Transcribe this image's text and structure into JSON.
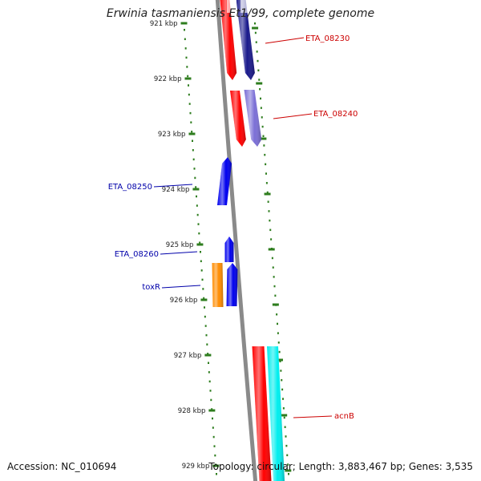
{
  "title": "Erwinia tasmaniensis Et1/99, complete genome",
  "accession_text": "Accession: NC_010694",
  "summary_text": "Topology: circular; Length: 3,883,467 bp; Genes: 3,535",
  "colors": {
    "backbone": "#8a8a8a",
    "tick": "#2e7d1e",
    "red_gene": "#ff0000",
    "navy_gene": "#1a1a8c",
    "lavender_gene": "#7b6fd6",
    "blue_gene": "#0000ee",
    "orange_gene": "#ff8c00",
    "cyan_gene": "#00eeee",
    "label_red": "#cc0000",
    "label_blue": "#0000aa"
  },
  "ruler": {
    "unit": "kbp",
    "labels": [
      "921 kbp",
      "922 kbp",
      "923 kbp",
      "924 kbp",
      "925 kbp",
      "926 kbp",
      "927 kbp",
      "928 kbp",
      "929 kbp"
    ]
  },
  "gene_labels": [
    {
      "text": "ETA_08230",
      "color": "label_red"
    },
    {
      "text": "ETA_08240",
      "color": "label_red"
    },
    {
      "text": "ETA_08250",
      "color": "label_blue"
    },
    {
      "text": "ETA_08260",
      "color": "label_blue"
    },
    {
      "text": "toxR",
      "color": "label_blue"
    },
    {
      "text": "acnB",
      "color": "label_red"
    }
  ],
  "genes": [
    {
      "color": "red_gene",
      "strand": "-"
    },
    {
      "color": "navy_gene",
      "strand": "-"
    },
    {
      "color": "red_gene",
      "strand": "-"
    },
    {
      "color": "lavender_gene",
      "strand": "-"
    },
    {
      "color": "blue_gene",
      "strand": "+"
    },
    {
      "color": "blue_gene",
      "strand": "+"
    },
    {
      "color": "blue_gene",
      "strand": "+"
    },
    {
      "color": "orange_gene",
      "strand": "+"
    },
    {
      "color": "red_gene",
      "strand": "-"
    },
    {
      "color": "cyan_gene",
      "strand": "-"
    }
  ]
}
